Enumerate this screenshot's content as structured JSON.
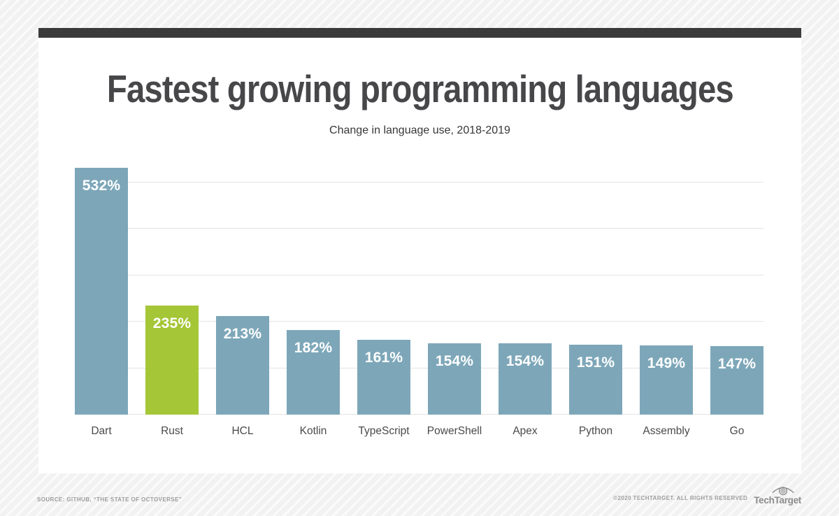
{
  "header": {
    "title": "Fastest growing programming languages",
    "subtitle": "Change in language use, 2018-2019"
  },
  "chart_data": {
    "type": "bar",
    "title": "Fastest growing programming languages",
    "subtitle": "Change in language use, 2018-2019",
    "categories": [
      "Dart",
      "Rust",
      "HCL",
      "Kotlin",
      "TypeScript",
      "PowerShell",
      "Apex",
      "Python",
      "Assembly",
      "Go"
    ],
    "values": [
      532,
      235,
      213,
      182,
      161,
      154,
      154,
      151,
      149,
      147
    ],
    "value_labels": [
      "532%",
      "235%",
      "213%",
      "182%",
      "161%",
      "154%",
      "154%",
      "151%",
      "149%",
      "147%"
    ],
    "xlabel": "",
    "ylabel": "",
    "ylim": [
      0,
      500
    ],
    "gridlines": [
      100,
      200,
      300,
      400,
      500
    ],
    "grid": true,
    "legend": false,
    "bar_color_default": "#7da7b9",
    "bar_color_highlight": "#a5c637",
    "highlight_category": "Rust",
    "value_label_color": "#ffffff"
  },
  "footer": {
    "source": "SOURCE: GITHUB, “THE STATE OF OCTOVERSE”",
    "copyright": "©2020 TECHTARGET. ALL RIGHTS RESERVED",
    "logo_text": "TechTarget"
  },
  "colors": {
    "top_accent_bar": "#3b3b3b",
    "card_background": "#ffffff",
    "page_stripe": "#f2f2f2",
    "gridline": "#e3e3e3",
    "title_text": "#47474a",
    "category_text": "#4a4a4a",
    "footer_text": "#9d9d9d",
    "logo_gray": "#8c8c8c"
  }
}
